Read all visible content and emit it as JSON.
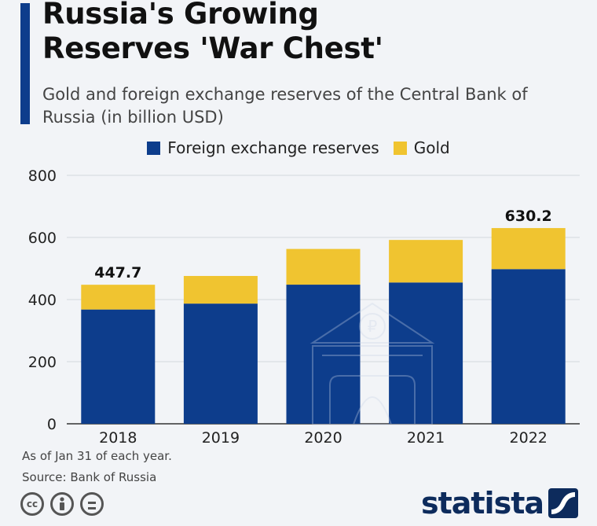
{
  "header": {
    "title": "Russia's Growing\nReserves 'War Chest'",
    "subtitle": "Gold and foreign exchange reserves of the Central Bank of Russia (in billion USD)"
  },
  "legend": [
    {
      "label": "Foreign exchange reserves",
      "color": "#0d3d8c"
    },
    {
      "label": "Gold",
      "color": "#f0c430"
    }
  ],
  "chart_data": {
    "type": "bar",
    "stacked": true,
    "title": "Russia's Growing Reserves 'War Chest'",
    "subtitle": "Gold and foreign exchange reserves of the Central Bank of Russia (in billion USD)",
    "categories": [
      "2018",
      "2019",
      "2020",
      "2021",
      "2022"
    ],
    "series": [
      {
        "name": "Foreign exchange reserves",
        "color": "#0d3d8c",
        "values": [
          368,
          387,
          448,
          455,
          498
        ]
      },
      {
        "name": "Gold",
        "color": "#f0c430",
        "values": [
          79.7,
          89,
          115,
          137,
          132.2
        ]
      }
    ],
    "totals": [
      447.7,
      476,
      563,
      592,
      630.2
    ],
    "data_labels": [
      {
        "category": "2018",
        "text": "447.7"
      },
      {
        "category": "2022",
        "text": "630.2"
      }
    ],
    "ylim": [
      0,
      800
    ],
    "yticks": [
      0,
      200,
      400,
      600,
      800
    ],
    "xlabel": "",
    "ylabel": "",
    "grid": true,
    "legend_position": "top"
  },
  "footer": {
    "note": "As of Jan 31 of each year.",
    "source": "Source: Bank of Russia",
    "brand": "statista"
  },
  "icons": [
    "creative-commons-icon",
    "attribution-icon",
    "no-derivatives-icon",
    "statista-logo-icon",
    "ruble-bank-watermark-icon"
  ]
}
